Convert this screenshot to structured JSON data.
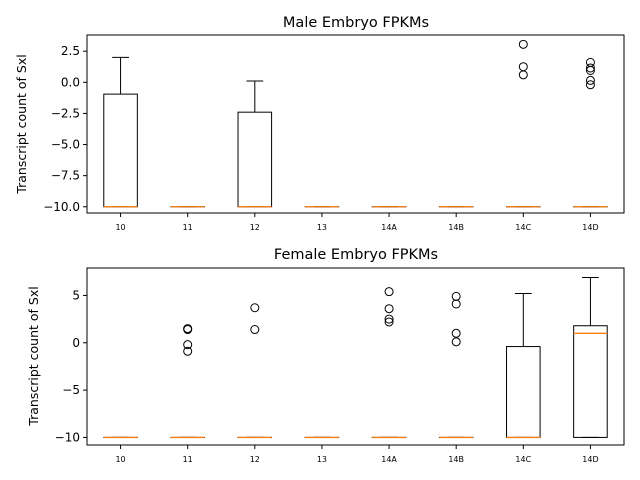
{
  "chart_data": [
    {
      "type": "box",
      "title": "Male Embryo FPKMs",
      "ylabel": "Transcript count of Sxl",
      "xlabel": "",
      "categories": [
        "10",
        "11",
        "12",
        "13",
        "14A",
        "14B",
        "14C",
        "14D"
      ],
      "ylim": [
        -10.5,
        3.8
      ],
      "yticks": [
        2.5,
        0.0,
        -2.5,
        -5.0,
        -7.5,
        -10.0
      ],
      "ytick_labels": [
        "2.5",
        "0.0",
        "−2.5",
        "−5.0",
        "−7.5",
        "−10.0"
      ],
      "boxes": [
        {
          "q1": -10.0,
          "median": -10.0,
          "q3": -0.95,
          "whisker_low": -10.0,
          "whisker_high": 2.0,
          "fliers": []
        },
        {
          "q1": -10.0,
          "median": -10.0,
          "q3": -10.0,
          "whisker_low": -10.0,
          "whisker_high": -10.0,
          "fliers": []
        },
        {
          "q1": -10.0,
          "median": -10.0,
          "q3": -2.4,
          "whisker_low": -10.0,
          "whisker_high": 0.1,
          "fliers": []
        },
        {
          "q1": -10.0,
          "median": -10.0,
          "q3": -10.0,
          "whisker_low": -10.0,
          "whisker_high": -10.0,
          "fliers": []
        },
        {
          "q1": -10.0,
          "median": -10.0,
          "q3": -10.0,
          "whisker_low": -10.0,
          "whisker_high": -10.0,
          "fliers": []
        },
        {
          "q1": -10.0,
          "median": -10.0,
          "q3": -10.0,
          "whisker_low": -10.0,
          "whisker_high": -10.0,
          "fliers": []
        },
        {
          "q1": -10.0,
          "median": -10.0,
          "q3": -10.0,
          "whisker_low": -10.0,
          "whisker_high": -10.0,
          "fliers": [
            3.05,
            1.25,
            0.6
          ]
        },
        {
          "q1": -10.0,
          "median": -10.0,
          "q3": -10.0,
          "whisker_low": -10.0,
          "whisker_high": -10.0,
          "fliers": [
            1.6,
            1.15,
            0.95,
            0.15,
            -0.2
          ]
        }
      ]
    },
    {
      "type": "box",
      "title": "Female Embryo FPKMs",
      "ylabel": "Transcript count of Sxl",
      "xlabel": "",
      "categories": [
        "10",
        "11",
        "12",
        "13",
        "14A",
        "14B",
        "14C",
        "14D"
      ],
      "ylim": [
        -10.8,
        7.9
      ],
      "yticks": [
        5,
        0,
        -5,
        -10
      ],
      "ytick_labels": [
        "5",
        "0",
        "−5",
        "−10"
      ],
      "boxes": [
        {
          "q1": -10.0,
          "median": -10.0,
          "q3": -10.0,
          "whisker_low": -10.0,
          "whisker_high": -10.0,
          "fliers": []
        },
        {
          "q1": -10.0,
          "median": -10.0,
          "q3": -10.0,
          "whisker_low": -10.0,
          "whisker_high": -10.0,
          "fliers": [
            1.5,
            1.4,
            -0.2,
            -0.9
          ]
        },
        {
          "q1": -10.0,
          "median": -10.0,
          "q3": -10.0,
          "whisker_low": -10.0,
          "whisker_high": -10.0,
          "fliers": [
            3.7,
            1.4
          ]
        },
        {
          "q1": -10.0,
          "median": -10.0,
          "q3": -10.0,
          "whisker_low": -10.0,
          "whisker_high": -10.0,
          "fliers": []
        },
        {
          "q1": -10.0,
          "median": -10.0,
          "q3": -10.0,
          "whisker_low": -10.0,
          "whisker_high": -10.0,
          "fliers": [
            5.4,
            3.6,
            2.5,
            2.2
          ]
        },
        {
          "q1": -10.0,
          "median": -10.0,
          "q3": -10.0,
          "whisker_low": -10.0,
          "whisker_high": -10.0,
          "fliers": [
            4.9,
            4.1,
            1.0,
            0.1
          ]
        },
        {
          "q1": -10.0,
          "median": -10.0,
          "q3": -0.4,
          "whisker_low": -10.0,
          "whisker_high": 5.2,
          "fliers": []
        },
        {
          "q1": -10.0,
          "median": 1.0,
          "q3": 1.8,
          "whisker_low": -10.0,
          "whisker_high": 6.9,
          "fliers": []
        }
      ]
    }
  ],
  "colors": {
    "box_edge": "#000000",
    "median": "#ff7f0e",
    "background": "#ffffff"
  }
}
